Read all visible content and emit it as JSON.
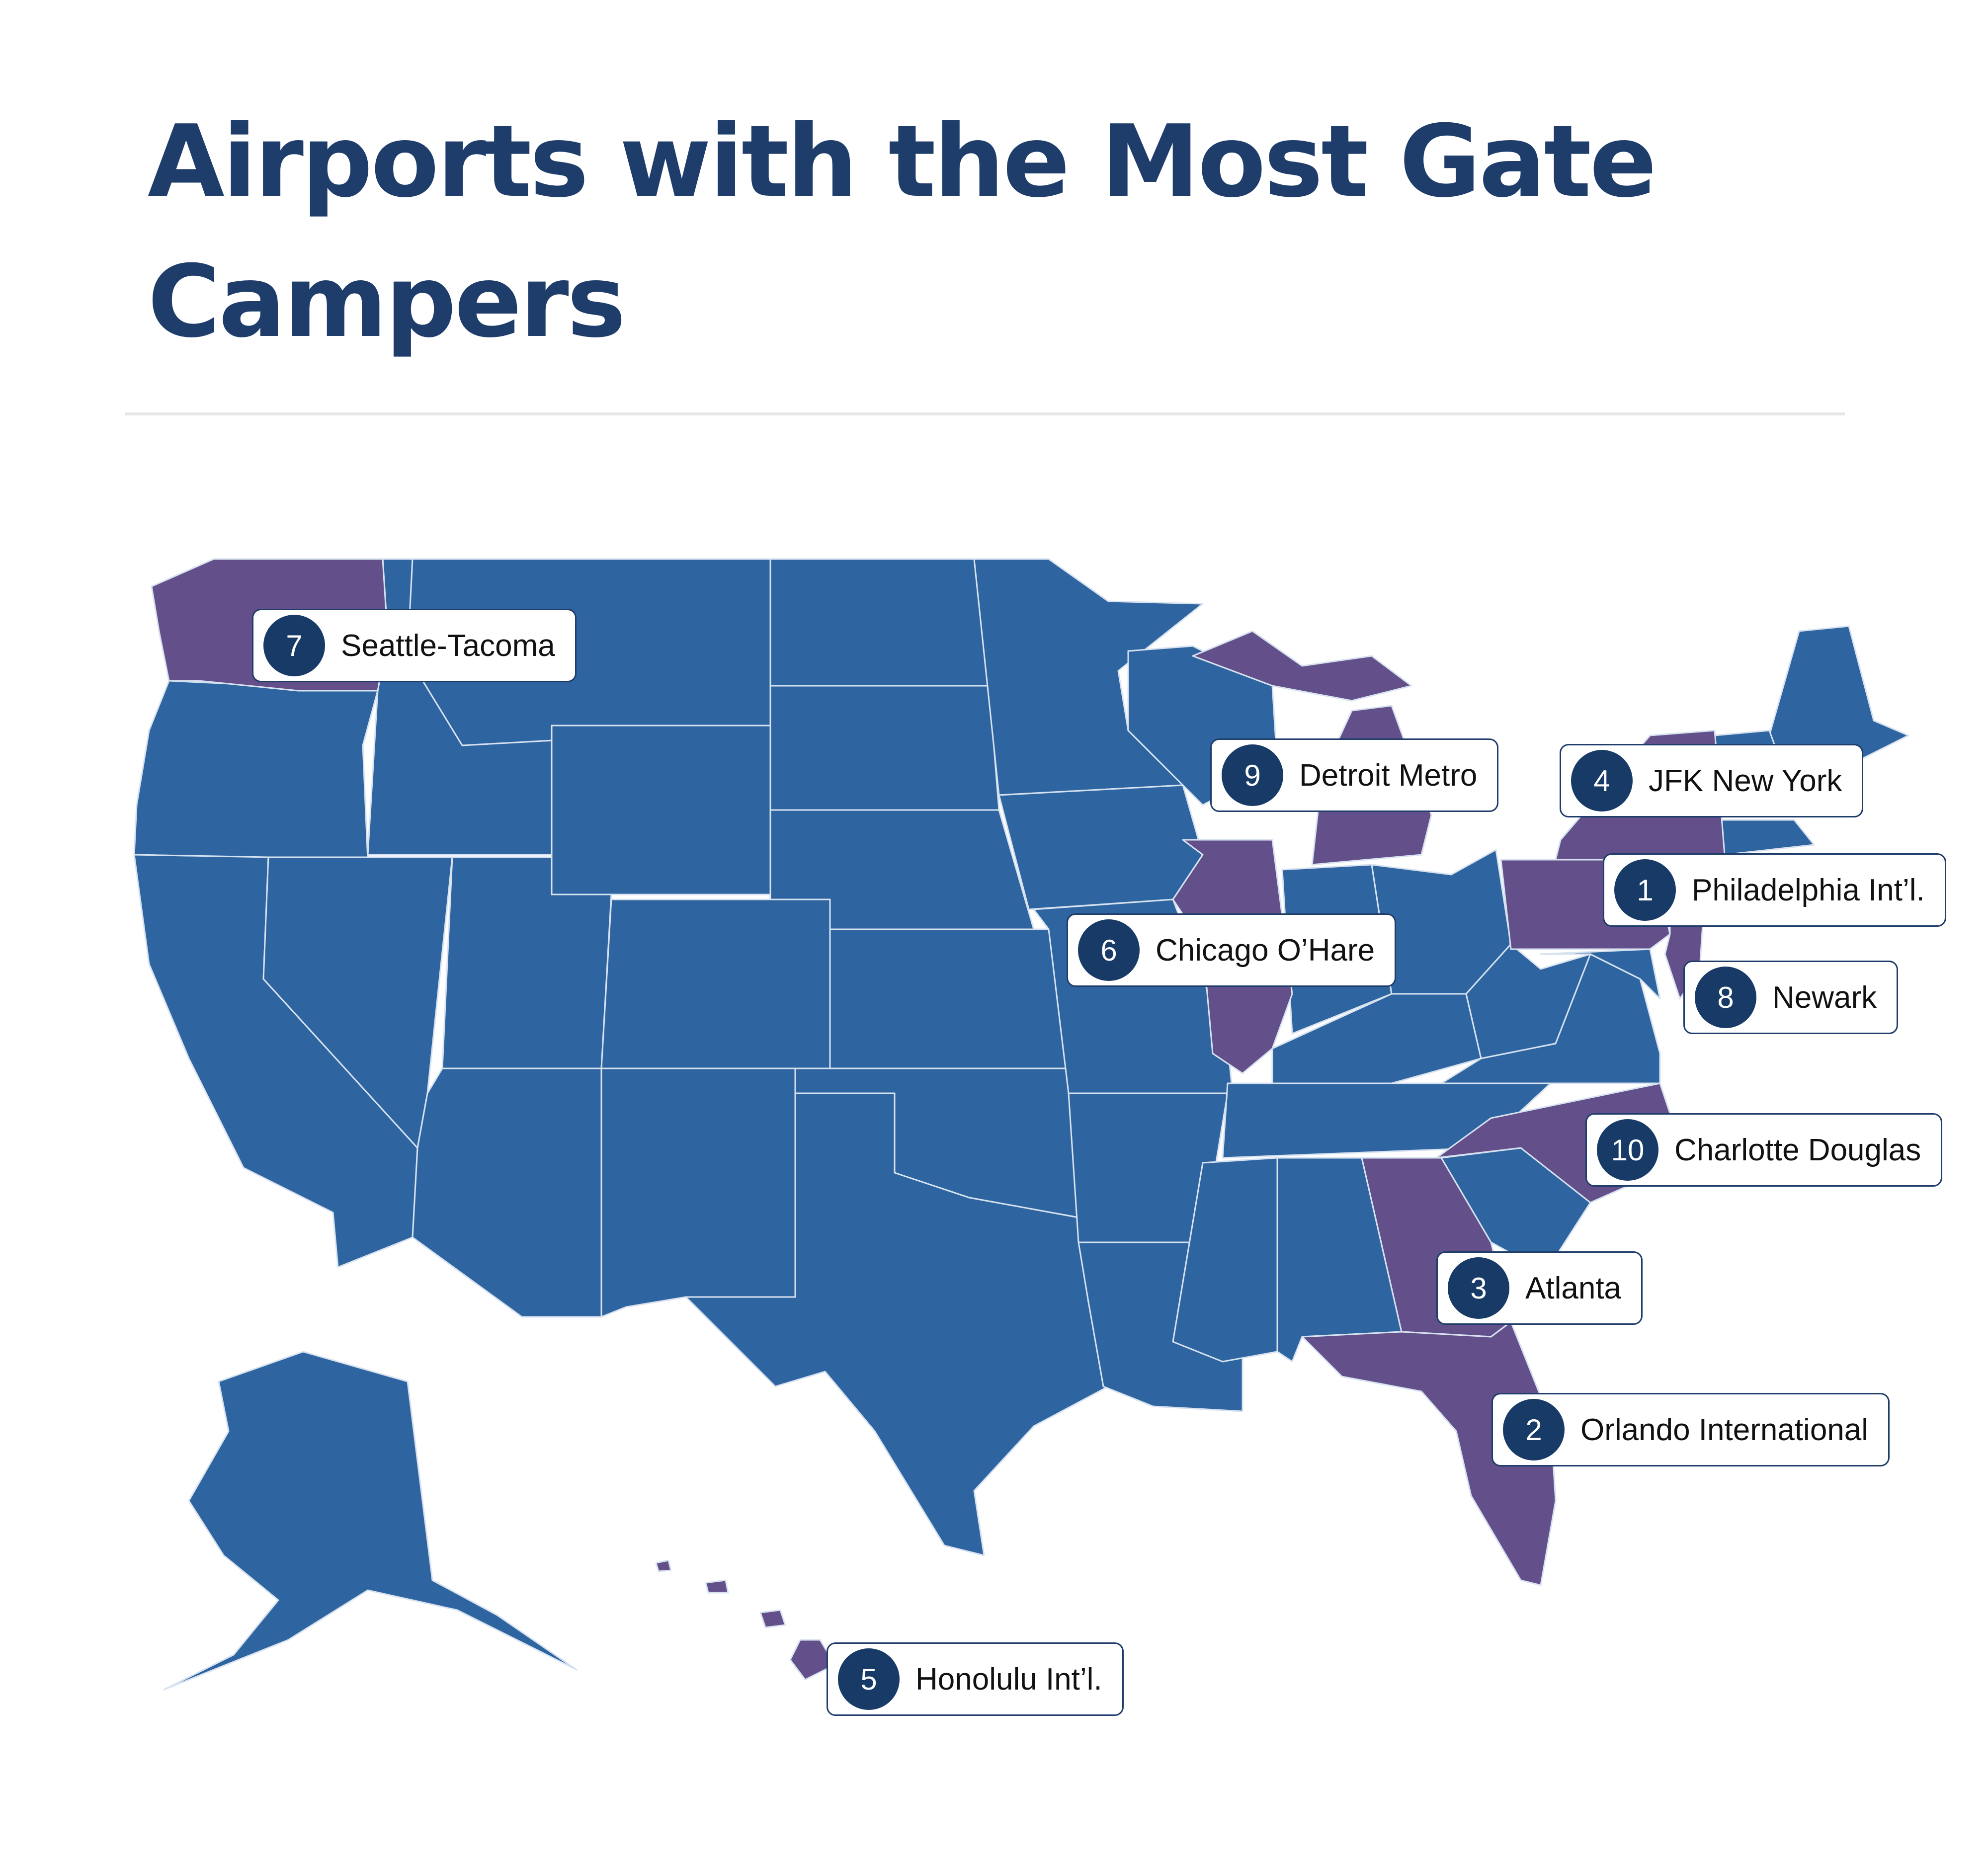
{
  "title": "Airports with the Most Gate Campers",
  "colors": {
    "base_state": "#2e64a0",
    "highlight_state": "#634f8a",
    "border": "#d7e2f0",
    "title": "#1f3d6b",
    "badge": "#173a67"
  },
  "highlighted_states": [
    "Washington",
    "Illinois",
    "Michigan",
    "New York",
    "Pennsylvania",
    "New Jersey",
    "North Carolina",
    "Georgia",
    "Florida",
    "Hawaii"
  ],
  "airports": [
    {
      "rank": "7",
      "name": "Seattle-Tacoma"
    },
    {
      "rank": "9",
      "name": "Detroit Metro"
    },
    {
      "rank": "4",
      "name": "JFK New York"
    },
    {
      "rank": "1",
      "name": "Philadelphia Int’l."
    },
    {
      "rank": "6",
      "name": "Chicago O’Hare"
    },
    {
      "rank": "8",
      "name": "Newark"
    },
    {
      "rank": "10",
      "name": "Charlotte Douglas"
    },
    {
      "rank": "3",
      "name": "Atlanta"
    },
    {
      "rank": "2",
      "name": "Orlando International"
    },
    {
      "rank": "5",
      "name": "Honolulu Int’l."
    }
  ]
}
